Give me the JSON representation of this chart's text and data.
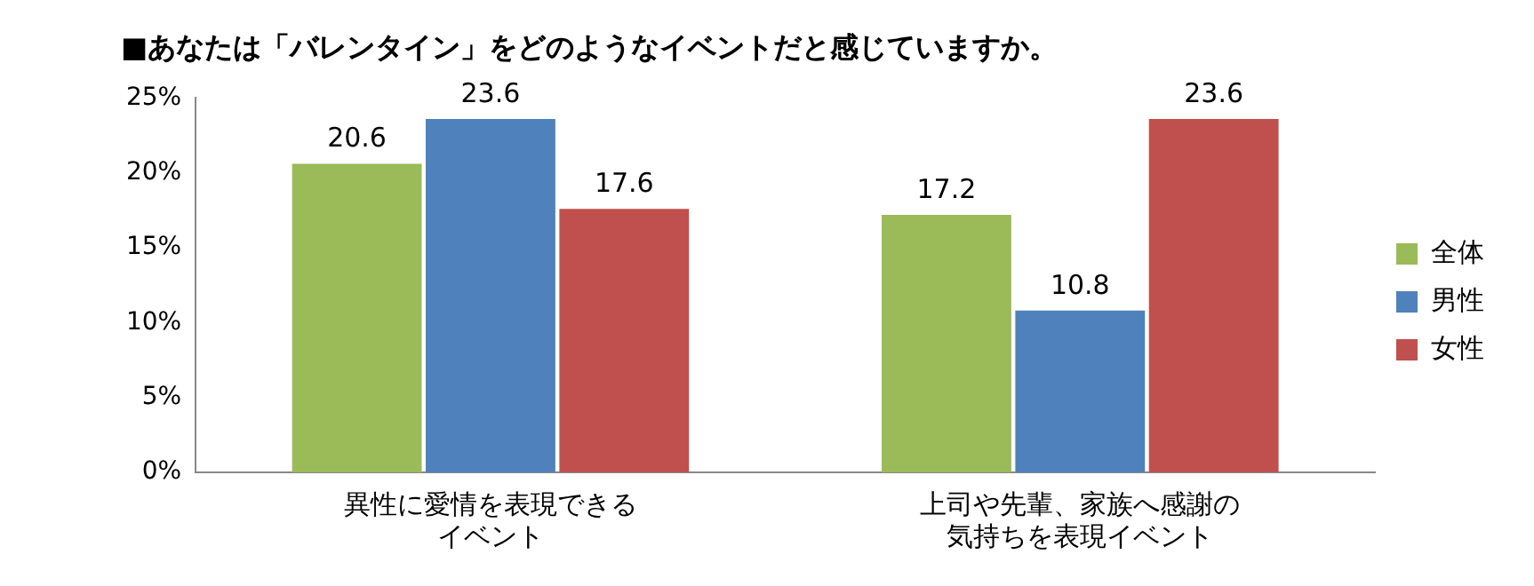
{
  "chart_data": {
    "type": "bar",
    "title": "■あなたは「バレンタイン」をどのようなイベントだと感じていますか。",
    "categories": [
      "異性に愛情を表現できるイベント",
      "上司や先輩、家族へ感謝の気持ちを表現イベント"
    ],
    "series": [
      {
        "name": "全体",
        "color": "#9bbb59",
        "values": [
          20.6,
          17.2
        ]
      },
      {
        "name": "男性",
        "color": "#4f81bd",
        "values": [
          23.6,
          10.8
        ]
      },
      {
        "name": "女性",
        "color": "#c0504d",
        "values": [
          17.6,
          23.6
        ]
      }
    ],
    "ylim": [
      0,
      25
    ],
    "yticks": [
      {
        "value": 0,
        "label": "0%"
      },
      {
        "value": 5,
        "label": "5%"
      },
      {
        "value": 10,
        "label": "10%"
      },
      {
        "value": 15,
        "label": "15%"
      },
      {
        "value": 20,
        "label": "20%"
      },
      {
        "value": 25,
        "label": "25%"
      }
    ],
    "grid": false,
    "legend": "right",
    "data_labels": true
  }
}
